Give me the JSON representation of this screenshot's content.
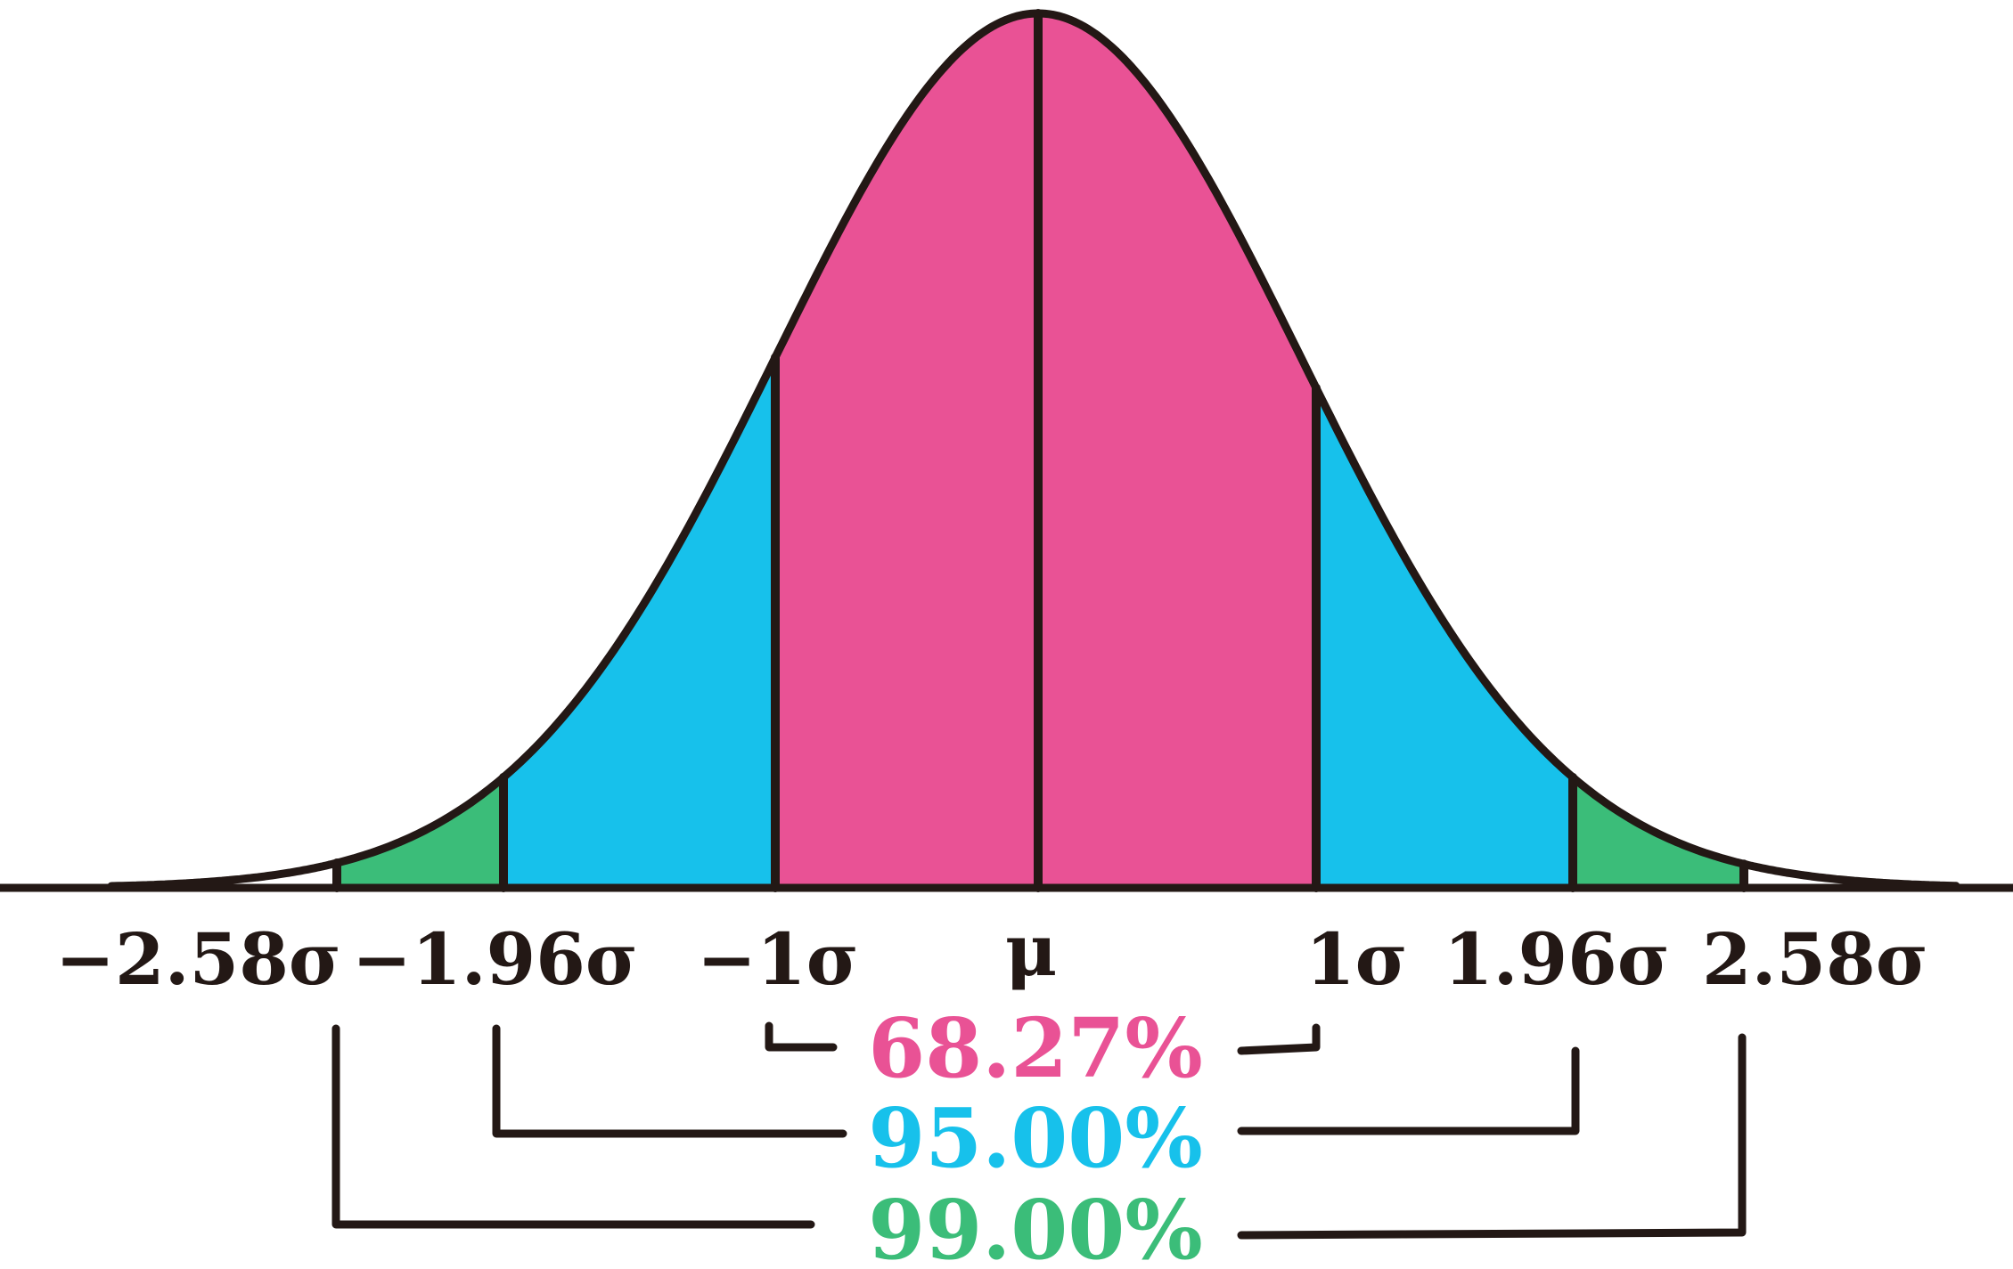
{
  "colors": {
    "outline": "#231815",
    "band_68": "#E95295",
    "band_95": "#17C1EB",
    "band_99": "#3BBD79",
    "background": "#FFFFFF"
  },
  "axis_labels": {
    "minus_2_58": "−2.58σ",
    "minus_1_96": "−1.96σ",
    "minus_1": "−1σ",
    "mu": "μ",
    "plus_1": "1σ",
    "plus_1_96": "1.96σ",
    "plus_2_58": "2.58σ"
  },
  "intervals": {
    "pct_68": "68.27%",
    "pct_95": "95.00%",
    "pct_99": "99.00%"
  }
}
